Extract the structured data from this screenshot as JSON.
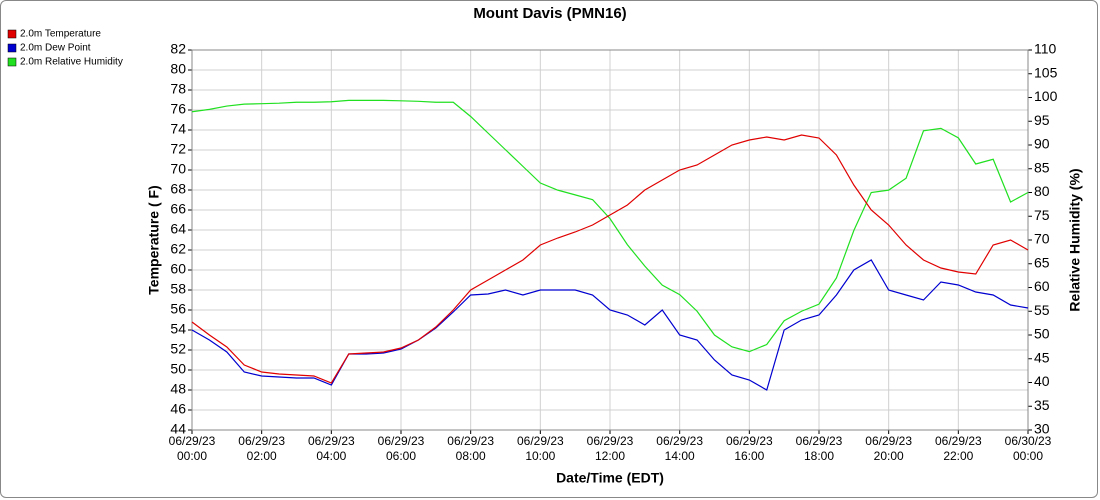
{
  "chart_data": {
    "type": "line",
    "title": "Mount Davis (PMN16)",
    "x_label": "Date/Time (EDT)",
    "y_label": "Temperature ( F)",
    "y2_label": "Relative Humidity (%)",
    "x": [
      0,
      0.5,
      1,
      1.5,
      2,
      2.5,
      3,
      3.5,
      4,
      4.5,
      5,
      5.5,
      6,
      6.5,
      7,
      7.5,
      8,
      8.5,
      9,
      9.5,
      10,
      10.5,
      11,
      11.5,
      12,
      12.5,
      13,
      13.5,
      14,
      14.5,
      15,
      15.5,
      16,
      16.5,
      17,
      17.5,
      18,
      18.5,
      19,
      19.5,
      20,
      20.5,
      21,
      21.5,
      22,
      22.5,
      23,
      23.5,
      24
    ],
    "series": [
      {
        "name": "2.0m Temperature",
        "color": "#e00000",
        "values": [
          54.8,
          53.5,
          52.3,
          50.5,
          49.8,
          49.6,
          49.5,
          49.4,
          48.7,
          51.6,
          51.7,
          51.8,
          52.2,
          53.0,
          54.3,
          56.0,
          58.0,
          59.0,
          60.0,
          61.0,
          62.5,
          63.2,
          63.8,
          64.5,
          65.5,
          66.5,
          68.0,
          69.0,
          70.0,
          70.5,
          71.5,
          72.5,
          73.0,
          73.3,
          73.0,
          73.5,
          73.2,
          71.5,
          68.5,
          66.0,
          64.5,
          62.5,
          61.0,
          60.2,
          59.8,
          59.6,
          62.5,
          63.0,
          62.0
        ]
      },
      {
        "name": "2.0m Dew Point",
        "color": "#0000d0",
        "values": [
          54.0,
          53.0,
          51.8,
          49.8,
          49.4,
          49.3,
          49.2,
          49.2,
          48.5,
          51.6,
          51.6,
          51.7,
          52.1,
          53.0,
          54.2,
          55.8,
          57.5,
          57.6,
          58.0,
          57.5,
          58.0,
          58.0,
          58.0,
          57.5,
          56.0,
          55.5,
          54.5,
          56.0,
          53.5,
          53.0,
          51.0,
          49.5,
          49.0,
          48.0,
          54.0,
          55.0,
          55.5,
          57.5,
          60.0,
          61.0,
          58.0,
          57.5,
          57.0,
          58.8,
          58.5,
          57.8,
          57.5,
          56.5,
          56.2
        ]
      },
      {
        "name": "2.0m Relative Humidity",
        "color": "#20e020",
        "axis": "y2",
        "values": [
          97,
          97.5,
          98.2,
          98.6,
          98.7,
          98.8,
          99,
          99,
          99.1,
          99.4,
          99.4,
          99.4,
          99.3,
          99.2,
          99,
          99,
          96,
          92.5,
          89,
          85.5,
          82,
          80.5,
          79.5,
          78.5,
          74.5,
          69,
          64.5,
          60.5,
          58.5,
          55,
          50,
          47.5,
          46.5,
          48,
          53,
          55,
          56.5,
          62,
          72,
          80,
          80.5,
          83,
          93,
          93.5,
          91.5,
          86,
          87,
          78,
          80
        ]
      }
    ],
    "xlim": [
      0,
      24
    ],
    "xticks": [
      {
        "value": 0,
        "label": [
          "06/29/23",
          "00:00"
        ]
      },
      {
        "value": 2,
        "label": [
          "06/29/23",
          "02:00"
        ]
      },
      {
        "value": 4,
        "label": [
          "06/29/23",
          "04:00"
        ]
      },
      {
        "value": 6,
        "label": [
          "06/29/23",
          "06:00"
        ]
      },
      {
        "value": 8,
        "label": [
          "06/29/23",
          "08:00"
        ]
      },
      {
        "value": 10,
        "label": [
          "06/29/23",
          "10:00"
        ]
      },
      {
        "value": 12,
        "label": [
          "06/29/23",
          "12:00"
        ]
      },
      {
        "value": 14,
        "label": [
          "06/29/23",
          "14:00"
        ]
      },
      {
        "value": 16,
        "label": [
          "06/29/23",
          "16:00"
        ]
      },
      {
        "value": 18,
        "label": [
          "06/29/23",
          "18:00"
        ]
      },
      {
        "value": 20,
        "label": [
          "06/29/23",
          "20:00"
        ]
      },
      {
        "value": 22,
        "label": [
          "06/29/23",
          "22:00"
        ]
      },
      {
        "value": 24,
        "label": [
          "06/30/23",
          "00:00"
        ]
      }
    ],
    "ylim": [
      44,
      82
    ],
    "yticks": [
      44,
      46,
      48,
      50,
      52,
      54,
      56,
      58,
      60,
      62,
      64,
      66,
      68,
      70,
      72,
      74,
      76,
      78,
      80,
      82
    ],
    "y2lim": [
      30,
      110
    ],
    "y2ticks": [
      30,
      35,
      40,
      45,
      50,
      55,
      60,
      65,
      70,
      75,
      80,
      85,
      90,
      95,
      100,
      105,
      110
    ],
    "grid": true,
    "legend": "top-left"
  }
}
